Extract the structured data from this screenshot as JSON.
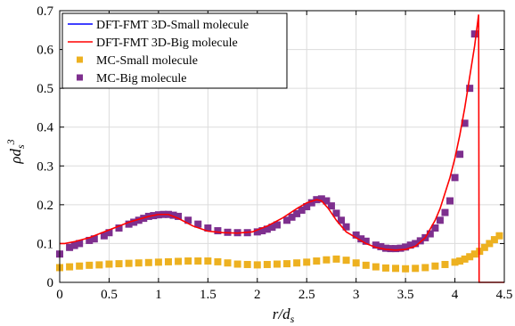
{
  "chart_data": {
    "type": "line",
    "title": "",
    "xlabel": "r/d_s",
    "ylabel": "ρd_s^3",
    "xlim": [
      0,
      4.5
    ],
    "ylim": [
      0,
      0.7
    ],
    "grid": true,
    "legend_position": "top-left",
    "x_tick_labels": [
      "0",
      "0.5",
      "1",
      "1.5",
      "2",
      "2.5",
      "3",
      "3.5",
      "4",
      "4.5"
    ],
    "y_tick_labels": [
      "0",
      "0.1",
      "0.2",
      "0.3",
      "0.4",
      "0.5",
      "0.6",
      "0.7"
    ],
    "series": [
      {
        "name": "DFT-FMT 3D-Small molecule",
        "style": "line",
        "color": "#0000ff",
        "x": [],
        "y": []
      },
      {
        "name": "DFT-FMT 3D-Big molecule",
        "style": "line",
        "color": "#ff0000",
        "x": [
          0,
          0.05,
          0.15,
          0.3,
          0.5,
          0.7,
          0.9,
          1.0,
          1.1,
          1.2,
          1.35,
          1.5,
          1.65,
          1.8,
          1.95,
          2.1,
          2.25,
          2.4,
          2.5,
          2.6,
          2.65,
          2.72,
          2.8,
          2.9,
          3.0,
          3.1,
          3.2,
          3.3,
          3.4,
          3.5,
          3.6,
          3.7,
          3.8,
          3.85,
          3.9,
          3.95,
          4.0,
          4.05,
          4.1,
          4.15,
          4.2,
          4.24,
          4.245,
          4.5
        ],
        "y": [
          0.1,
          0.1,
          0.105,
          0.115,
          0.135,
          0.155,
          0.17,
          0.175,
          0.175,
          0.165,
          0.145,
          0.132,
          0.128,
          0.127,
          0.13,
          0.145,
          0.165,
          0.19,
          0.205,
          0.213,
          0.21,
          0.19,
          0.16,
          0.13,
          0.115,
          0.1,
          0.09,
          0.085,
          0.083,
          0.085,
          0.093,
          0.115,
          0.16,
          0.19,
          0.23,
          0.27,
          0.32,
          0.38,
          0.45,
          0.53,
          0.61,
          0.69,
          0.0,
          0.0
        ]
      },
      {
        "name": "MC-Small molecule",
        "style": "marker",
        "color": "#edb120",
        "x": [
          0.0,
          0.1,
          0.2,
          0.3,
          0.4,
          0.5,
          0.6,
          0.7,
          0.8,
          0.9,
          1.0,
          1.1,
          1.2,
          1.3,
          1.4,
          1.5,
          1.6,
          1.7,
          1.8,
          1.9,
          2.0,
          2.1,
          2.2,
          2.3,
          2.4,
          2.5,
          2.6,
          2.7,
          2.8,
          2.9,
          3.0,
          3.1,
          3.2,
          3.3,
          3.4,
          3.5,
          3.6,
          3.7,
          3.8,
          3.9,
          4.0,
          4.05,
          4.1,
          4.15,
          4.2,
          4.25,
          4.3,
          4.35,
          4.4,
          4.45
        ],
        "y": [
          0.038,
          0.04,
          0.042,
          0.044,
          0.045,
          0.047,
          0.048,
          0.049,
          0.05,
          0.051,
          0.052,
          0.053,
          0.054,
          0.055,
          0.055,
          0.055,
          0.053,
          0.05,
          0.047,
          0.046,
          0.045,
          0.046,
          0.047,
          0.048,
          0.05,
          0.052,
          0.055,
          0.058,
          0.06,
          0.057,
          0.05,
          0.044,
          0.04,
          0.037,
          0.036,
          0.035,
          0.036,
          0.038,
          0.042,
          0.046,
          0.052,
          0.055,
          0.06,
          0.066,
          0.073,
          0.08,
          0.09,
          0.1,
          0.11,
          0.12
        ]
      },
      {
        "name": "MC-Big molecule",
        "style": "marker",
        "color": "#7e2f8e",
        "x": [
          0.0,
          0.1,
          0.15,
          0.2,
          0.3,
          0.35,
          0.45,
          0.5,
          0.6,
          0.7,
          0.75,
          0.8,
          0.85,
          0.9,
          0.95,
          1.0,
          1.05,
          1.1,
          1.15,
          1.2,
          1.3,
          1.4,
          1.5,
          1.6,
          1.7,
          1.8,
          1.9,
          2.0,
          2.05,
          2.1,
          2.15,
          2.2,
          2.3,
          2.35,
          2.4,
          2.45,
          2.5,
          2.55,
          2.6,
          2.65,
          2.7,
          2.75,
          2.8,
          2.85,
          2.9,
          3.0,
          3.05,
          3.1,
          3.2,
          3.25,
          3.3,
          3.35,
          3.4,
          3.45,
          3.5,
          3.55,
          3.6,
          3.65,
          3.7,
          3.75,
          3.8,
          3.85,
          3.9,
          3.95,
          4.0,
          4.05,
          4.1,
          4.15,
          4.2
        ],
        "y": [
          0.073,
          0.09,
          0.095,
          0.1,
          0.108,
          0.112,
          0.12,
          0.128,
          0.14,
          0.15,
          0.155,
          0.16,
          0.165,
          0.17,
          0.172,
          0.174,
          0.175,
          0.175,
          0.173,
          0.17,
          0.16,
          0.15,
          0.14,
          0.133,
          0.129,
          0.128,
          0.128,
          0.13,
          0.133,
          0.137,
          0.142,
          0.148,
          0.16,
          0.168,
          0.177,
          0.186,
          0.195,
          0.205,
          0.213,
          0.215,
          0.21,
          0.197,
          0.178,
          0.16,
          0.143,
          0.122,
          0.112,
          0.106,
          0.096,
          0.092,
          0.088,
          0.087,
          0.087,
          0.088,
          0.091,
          0.096,
          0.1,
          0.107,
          0.115,
          0.125,
          0.14,
          0.16,
          0.18,
          0.21,
          0.27,
          0.33,
          0.41,
          0.5,
          0.64
        ]
      }
    ]
  }
}
